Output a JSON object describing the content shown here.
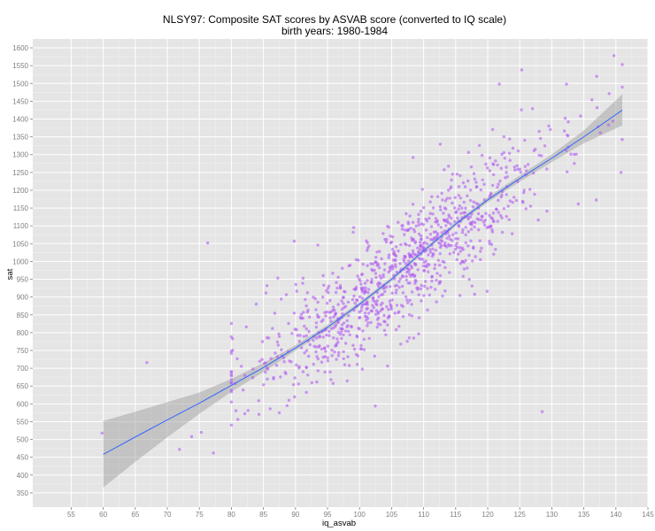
{
  "chart_data": {
    "type": "scatter",
    "title": "NLSY97: Composite SAT scores by ASVAB score (converted to IQ scale)",
    "subtitle": "birth years: 1980-1984",
    "xlabel": "iq_asvab",
    "ylabel": "sat",
    "xlim": [
      49,
      145
    ],
    "ylim": [
      310,
      1625
    ],
    "xticks": [
      55,
      60,
      65,
      70,
      75,
      80,
      85,
      90,
      95,
      100,
      105,
      110,
      115,
      120,
      125,
      130,
      135,
      140,
      145
    ],
    "yticks": [
      350,
      400,
      450,
      500,
      550,
      600,
      650,
      700,
      750,
      800,
      850,
      900,
      950,
      1000,
      1050,
      1100,
      1150,
      1200,
      1250,
      1300,
      1350,
      1400,
      1450,
      1500,
      1550,
      1600
    ],
    "grid": true,
    "point_color": "#b15cf0",
    "smooth_color": "#3366ff",
    "band_color": "#999999",
    "panel_color": "#e5e5e5",
    "points_summary": {
      "count": 1000,
      "x_mean": 106,
      "x_sd": 12,
      "x_range": [
        60,
        141
      ]
    },
    "points_outliers": [
      {
        "x": 59.8,
        "y": 518
      },
      {
        "x": 66.8,
        "y": 716
      },
      {
        "x": 71.9,
        "y": 472
      },
      {
        "x": 73.8,
        "y": 508
      },
      {
        "x": 75.3,
        "y": 520
      },
      {
        "x": 76.3,
        "y": 1052
      },
      {
        "x": 77.2,
        "y": 462
      },
      {
        "x": 89.8,
        "y": 1057
      },
      {
        "x": 128.5,
        "y": 578
      },
      {
        "x": 139.7,
        "y": 1578
      },
      {
        "x": 141.0,
        "y": 1553
      },
      {
        "x": 140.8,
        "y": 1250
      },
      {
        "x": 125.3,
        "y": 1538
      },
      {
        "x": 121.8,
        "y": 1498
      },
      {
        "x": 132.3,
        "y": 1498
      },
      {
        "x": 137.0,
        "y": 1520
      }
    ],
    "smooth_line": {
      "x": [
        60,
        65,
        70,
        75,
        80,
        85,
        90,
        95,
        100,
        105,
        110,
        115,
        120,
        125,
        130,
        135,
        141
      ],
      "y": [
        458,
        507,
        555,
        602,
        652,
        702,
        757,
        815,
        880,
        950,
        1030,
        1105,
        1173,
        1233,
        1290,
        1350,
        1425
      ]
    },
    "band_upper": [
      552,
      578,
      605,
      632,
      670,
      715,
      765,
      822,
      886,
      956,
      1036,
      1111,
      1180,
      1242,
      1301,
      1368,
      1470
    ],
    "band_lower": [
      365,
      437,
      506,
      572,
      634,
      689,
      749,
      808,
      874,
      944,
      1024,
      1099,
      1166,
      1224,
      1279,
      1332,
      1382
    ]
  }
}
